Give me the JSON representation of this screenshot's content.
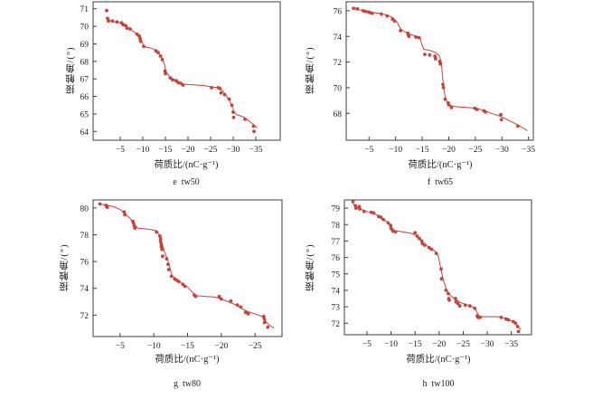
{
  "colors": {
    "accent": "#c2443c",
    "axis": "#3c3c3c",
    "text": "#1f1f1f",
    "background": "#ffffff"
  },
  "chart_data": [
    {
      "id": "e",
      "type": "scatter",
      "caption": "e  tw50",
      "xlabel": "荷质比/(nC·g⁻¹)",
      "ylabel": "接触角/(°)",
      "xlim": [
        1,
        -40.4
      ],
      "ylim": [
        63.5,
        71.4
      ],
      "xticks": [
        -5,
        -10,
        -15,
        -20,
        -25,
        -30,
        -35
      ],
      "yticks": [
        64,
        65,
        66,
        67,
        68,
        69,
        70,
        71
      ],
      "legend": false,
      "grid": false,
      "points": [
        [
          -2.0,
          70.9
        ],
        [
          -2.2,
          70.45
        ],
        [
          -2.4,
          70.3
        ],
        [
          -3.3,
          70.3
        ],
        [
          -4.3,
          70.25
        ],
        [
          -5.3,
          70.2
        ],
        [
          -5.6,
          70.1
        ],
        [
          -6.2,
          70.05
        ],
        [
          -6.5,
          69.9
        ],
        [
          -7.2,
          69.85
        ],
        [
          -8.7,
          69.55
        ],
        [
          -9.2,
          69.45
        ],
        [
          -9.4,
          69.3
        ],
        [
          -9.5,
          69.15
        ],
        [
          -10.2,
          68.85
        ],
        [
          -12.9,
          68.6
        ],
        [
          -13.4,
          68.5
        ],
        [
          -13.9,
          68.3
        ],
        [
          -14.3,
          68.1
        ],
        [
          -14.9,
          67.45
        ],
        [
          -15.0,
          67.3
        ],
        [
          -16.1,
          67.05
        ],
        [
          -16.6,
          66.95
        ],
        [
          -17.4,
          66.9
        ],
        [
          -17.8,
          66.8
        ],
        [
          -18.4,
          66.75
        ],
        [
          -18.9,
          66.65
        ],
        [
          -25.2,
          66.5
        ],
        [
          -26.7,
          66.5
        ],
        [
          -27.1,
          66.45
        ],
        [
          -27.3,
          66.2
        ],
        [
          -28.1,
          66.1
        ],
        [
          -29.1,
          65.85
        ],
        [
          -29.7,
          65.5
        ],
        [
          -30.0,
          65.1
        ],
        [
          -30.1,
          64.8
        ],
        [
          -32.6,
          64.7
        ],
        [
          -34.5,
          64.3
        ],
        [
          -34.6,
          64.0
        ]
      ],
      "trend_line": [
        [
          -1.8,
          70.5
        ],
        [
          -3,
          70.3
        ],
        [
          -5,
          70.2
        ],
        [
          -6.5,
          69.95
        ],
        [
          -8,
          69.7
        ],
        [
          -9,
          69.5
        ],
        [
          -9.7,
          69.2
        ],
        [
          -10.3,
          68.85
        ],
        [
          -11,
          68.8
        ],
        [
          -12,
          68.75
        ],
        [
          -13,
          68.6
        ],
        [
          -14,
          68.3
        ],
        [
          -14.7,
          67.9
        ],
        [
          -15.2,
          67.4
        ],
        [
          -16,
          67.1
        ],
        [
          -17,
          66.95
        ],
        [
          -18,
          66.8
        ],
        [
          -19,
          66.7
        ],
        [
          -20.5,
          66.67
        ],
        [
          -22,
          66.65
        ],
        [
          -23.5,
          66.62
        ],
        [
          -25,
          66.55
        ],
        [
          -26.5,
          66.5
        ],
        [
          -27.5,
          66.35
        ],
        [
          -28.5,
          66.05
        ],
        [
          -29.5,
          65.6
        ],
        [
          -30.2,
          65.1
        ],
        [
          -30.8,
          64.95
        ],
        [
          -31.5,
          64.9
        ],
        [
          -32.5,
          64.8
        ],
        [
          -33.5,
          64.6
        ],
        [
          -34.5,
          64.4
        ],
        [
          -35.3,
          64.2
        ]
      ]
    },
    {
      "id": "f",
      "type": "scatter",
      "caption": "f  tw65",
      "xlabel": "荷质比/(nC·g⁻¹)",
      "ylabel": "接触角/(°)",
      "xlim": [
        -0.7,
        -35.9
      ],
      "ylim": [
        65.9,
        76.7
      ],
      "xticks": [
        -5,
        -10,
        -15,
        -20,
        -25,
        -30,
        -35
      ],
      "yticks": [
        68,
        70,
        72,
        74,
        76
      ],
      "legend": false,
      "grid": false,
      "points": [
        [
          -2.1,
          76.2
        ],
        [
          -2.8,
          76.15
        ],
        [
          -3.9,
          76.0
        ],
        [
          -4.3,
          75.95
        ],
        [
          -4.9,
          75.9
        ],
        [
          -5.2,
          75.85
        ],
        [
          -5.6,
          75.8
        ],
        [
          -7.3,
          75.75
        ],
        [
          -8.4,
          75.6
        ],
        [
          -9.4,
          75.35
        ],
        [
          -9.8,
          75.2
        ],
        [
          -10.9,
          74.45
        ],
        [
          -12.3,
          74.25
        ],
        [
          -12.4,
          74.1
        ],
        [
          -12.5,
          74.0
        ],
        [
          -13.8,
          73.95
        ],
        [
          -14.4,
          73.9
        ],
        [
          -15.5,
          72.6
        ],
        [
          -16.4,
          72.55
        ],
        [
          -17.4,
          72.45
        ],
        [
          -17.5,
          72.25
        ],
        [
          -18.3,
          72.05
        ],
        [
          -18.4,
          71.85
        ],
        [
          -18.9,
          70.25
        ],
        [
          -19.0,
          70.0
        ],
        [
          -19.3,
          69.1
        ],
        [
          -19.9,
          68.8
        ],
        [
          -20.0,
          68.65
        ],
        [
          -20.5,
          68.45
        ],
        [
          -24.9,
          68.4
        ],
        [
          -25.3,
          68.3
        ],
        [
          -26.6,
          68.2
        ],
        [
          -26.9,
          68.1
        ],
        [
          -29.8,
          67.9
        ],
        [
          -29.9,
          67.5
        ],
        [
          -33.0,
          67.0
        ]
      ],
      "trend_line": [
        [
          -1.9,
          76.2
        ],
        [
          -3.5,
          76.05
        ],
        [
          -5,
          75.9
        ],
        [
          -7,
          75.8
        ],
        [
          -8.5,
          75.65
        ],
        [
          -9.5,
          75.45
        ],
        [
          -10.3,
          75.1
        ],
        [
          -10.9,
          74.6
        ],
        [
          -11.5,
          74.4
        ],
        [
          -12.5,
          74.2
        ],
        [
          -13.5,
          74.05
        ],
        [
          -14.6,
          73.95
        ],
        [
          -14.9,
          73.4
        ],
        [
          -15.3,
          73.0
        ],
        [
          -16.5,
          72.9
        ],
        [
          -17.5,
          72.75
        ],
        [
          -18.2,
          72.5
        ],
        [
          -18.6,
          72.0
        ],
        [
          -18.8,
          71.0
        ],
        [
          -19.1,
          69.8
        ],
        [
          -19.4,
          69.1
        ],
        [
          -20,
          68.7
        ],
        [
          -20.8,
          68.55
        ],
        [
          -22,
          68.5
        ],
        [
          -23.5,
          68.45
        ],
        [
          -25,
          68.4
        ],
        [
          -26.5,
          68.25
        ],
        [
          -28,
          68.0
        ],
        [
          -29.5,
          67.8
        ],
        [
          -31,
          67.5
        ],
        [
          -32.5,
          67.2
        ],
        [
          -34,
          66.85
        ],
        [
          -34.8,
          66.65
        ]
      ]
    },
    {
      "id": "g",
      "type": "scatter",
      "caption": "g  tw80",
      "xlabel": "荷质比/(nC·g⁻¹)",
      "ylabel": "接触角/(°)",
      "xlim": [
        -1.0,
        -29.0
      ],
      "ylim": [
        70.4,
        80.6
      ],
      "xticks": [
        -5,
        -10,
        -15,
        -20,
        -25
      ],
      "yticks": [
        72,
        74,
        76,
        78,
        80
      ],
      "legend": false,
      "grid": false,
      "points": [
        [
          -2.0,
          80.3
        ],
        [
          -2.9,
          80.2
        ],
        [
          -3.0,
          80.15
        ],
        [
          -3.1,
          80.05
        ],
        [
          -5.6,
          79.7
        ],
        [
          -5.7,
          79.5
        ],
        [
          -6.9,
          79.0
        ],
        [
          -7.0,
          78.85
        ],
        [
          -7.1,
          78.65
        ],
        [
          -7.2,
          78.5
        ],
        [
          -10.4,
          78.2
        ],
        [
          -10.9,
          77.9
        ],
        [
          -11.0,
          77.7
        ],
        [
          -11.0,
          77.5
        ],
        [
          -11.1,
          77.3
        ],
        [
          -11.1,
          77.1
        ],
        [
          -11.2,
          76.9
        ],
        [
          -11.3,
          76.4
        ],
        [
          -11.9,
          76.2
        ],
        [
          -12.1,
          75.8
        ],
        [
          -12.2,
          75.4
        ],
        [
          -12.6,
          74.9
        ],
        [
          -13.1,
          74.7
        ],
        [
          -13.4,
          74.6
        ],
        [
          -13.7,
          74.5
        ],
        [
          -14.3,
          74.3
        ],
        [
          -14.6,
          74.15
        ],
        [
          -16.0,
          73.5
        ],
        [
          -16.2,
          73.4
        ],
        [
          -19.7,
          73.4
        ],
        [
          -20.0,
          73.2
        ],
        [
          -21.4,
          73.05
        ],
        [
          -22.4,
          72.75
        ],
        [
          -22.9,
          72.6
        ],
        [
          -23.6,
          72.2
        ],
        [
          -24.0,
          72.1
        ],
        [
          -26.3,
          71.9
        ],
        [
          -26.4,
          71.7
        ],
        [
          -26.4,
          71.45
        ],
        [
          -26.9,
          71.1
        ]
      ],
      "trend_line": [
        [
          -1.9,
          80.3
        ],
        [
          -3,
          80.2
        ],
        [
          -4,
          80.1
        ],
        [
          -5,
          79.9
        ],
        [
          -5.8,
          79.55
        ],
        [
          -6.5,
          79.2
        ],
        [
          -7,
          78.85
        ],
        [
          -7.6,
          78.5
        ],
        [
          -8.5,
          78.45
        ],
        [
          -9.5,
          78.4
        ],
        [
          -10.3,
          78.3
        ],
        [
          -10.8,
          78.0
        ],
        [
          -11.2,
          77.4
        ],
        [
          -11.6,
          76.7
        ],
        [
          -12,
          76.2
        ],
        [
          -12.4,
          75.5
        ],
        [
          -12.7,
          74.95
        ],
        [
          -13.2,
          74.7
        ],
        [
          -14,
          74.45
        ],
        [
          -15,
          74.1
        ],
        [
          -15.7,
          73.7
        ],
        [
          -16.3,
          73.45
        ],
        [
          -17.5,
          73.4
        ],
        [
          -19,
          73.35
        ],
        [
          -20,
          73.2
        ],
        [
          -21,
          73.0
        ],
        [
          -22,
          72.8
        ],
        [
          -23,
          72.5
        ],
        [
          -24,
          72.25
        ],
        [
          -25,
          72.1
        ],
        [
          -26,
          71.9
        ],
        [
          -26.8,
          71.4
        ],
        [
          -27.4,
          71.15
        ],
        [
          -27.8,
          71.05
        ]
      ]
    },
    {
      "id": "h",
      "type": "scatter",
      "caption": "h  tw100",
      "xlabel": "荷质比/(nC·g⁻¹)",
      "ylabel": "接触角/(°)",
      "xlim": [
        -0.3,
        -39.2
      ],
      "ylim": [
        71.3,
        79.5
      ],
      "xticks": [
        -5,
        -10,
        -15,
        -20,
        -25,
        -30,
        -35
      ],
      "yticks": [
        72,
        73,
        74,
        75,
        76,
        77,
        78,
        79
      ],
      "legend": false,
      "grid": false,
      "points": [
        [
          -2.1,
          79.4
        ],
        [
          -2.6,
          79.15
        ],
        [
          -2.7,
          79.0
        ],
        [
          -3.4,
          79.1
        ],
        [
          -3.5,
          78.95
        ],
        [
          -4.4,
          78.8
        ],
        [
          -5.9,
          78.75
        ],
        [
          -6.4,
          78.7
        ],
        [
          -7.4,
          78.5
        ],
        [
          -7.9,
          78.45
        ],
        [
          -8.4,
          78.3
        ],
        [
          -9.4,
          78.1
        ],
        [
          -9.9,
          77.95
        ],
        [
          -10.0,
          77.75
        ],
        [
          -10.4,
          77.6
        ],
        [
          -10.9,
          77.55
        ],
        [
          -15.0,
          77.5
        ],
        [
          -15.4,
          77.3
        ],
        [
          -15.9,
          77.15
        ],
        [
          -16.4,
          77.0
        ],
        [
          -16.5,
          76.85
        ],
        [
          -17.0,
          76.75
        ],
        [
          -17.9,
          76.6
        ],
        [
          -18.4,
          76.5
        ],
        [
          -19.4,
          76.25
        ],
        [
          -20.4,
          75.3
        ],
        [
          -20.5,
          74.7
        ],
        [
          -21.4,
          74.0
        ],
        [
          -21.9,
          73.8
        ],
        [
          -22.0,
          73.5
        ],
        [
          -22.1,
          73.4
        ],
        [
          -23.4,
          73.5
        ],
        [
          -23.5,
          73.3
        ],
        [
          -23.9,
          73.2
        ],
        [
          -24.3,
          73.05
        ],
        [
          -25.4,
          73.1
        ],
        [
          -26.4,
          73.05
        ],
        [
          -27.4,
          72.9
        ],
        [
          -27.9,
          72.45
        ],
        [
          -28.1,
          72.35
        ],
        [
          -28.5,
          72.35
        ],
        [
          -32.9,
          72.35
        ],
        [
          -33.9,
          72.25
        ],
        [
          -34.4,
          72.2
        ],
        [
          -35.4,
          72.1
        ],
        [
          -35.9,
          72.0
        ],
        [
          -36.3,
          71.8
        ],
        [
          -36.5,
          71.5
        ]
      ],
      "trend_line": [
        [
          -2.0,
          79.3
        ],
        [
          -3,
          79.05
        ],
        [
          -4,
          78.9
        ],
        [
          -5,
          78.8
        ],
        [
          -6,
          78.72
        ],
        [
          -7,
          78.6
        ],
        [
          -8,
          78.45
        ],
        [
          -9,
          78.2
        ],
        [
          -10,
          77.9
        ],
        [
          -10.6,
          77.65
        ],
        [
          -11.5,
          77.6
        ],
        [
          -12.5,
          77.55
        ],
        [
          -13.5,
          77.5
        ],
        [
          -14.5,
          77.45
        ],
        [
          -15.5,
          77.25
        ],
        [
          -16.5,
          76.95
        ],
        [
          -17.5,
          76.7
        ],
        [
          -18.5,
          76.5
        ],
        [
          -19.3,
          76.35
        ],
        [
          -19.8,
          76.1
        ],
        [
          -20.3,
          75.4
        ],
        [
          -20.8,
          74.7
        ],
        [
          -21.4,
          74.15
        ],
        [
          -22,
          73.8
        ],
        [
          -22.7,
          73.6
        ],
        [
          -23.5,
          73.45
        ],
        [
          -24.5,
          73.25
        ],
        [
          -25.5,
          73.15
        ],
        [
          -26.5,
          73.05
        ],
        [
          -27.3,
          72.95
        ],
        [
          -27.8,
          72.7
        ],
        [
          -28.3,
          72.45
        ],
        [
          -29,
          72.4
        ],
        [
          -30.5,
          72.4
        ],
        [
          -32,
          72.4
        ],
        [
          -33,
          72.35
        ],
        [
          -34,
          72.3
        ],
        [
          -35,
          72.15
        ],
        [
          -36,
          71.95
        ],
        [
          -37,
          71.6
        ]
      ]
    }
  ]
}
